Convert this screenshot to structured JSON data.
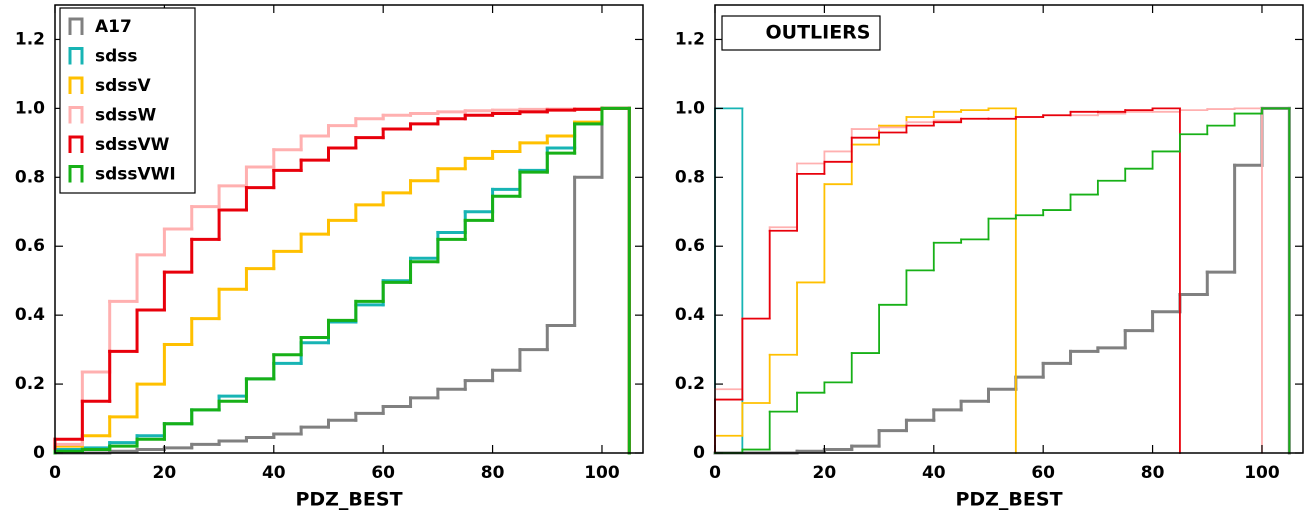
{
  "chart_data": [
    {
      "type": "histogram",
      "xlabel": "PDZ_BEST",
      "xlim": [
        0,
        107.5
      ],
      "ylim": [
        0,
        1.3
      ],
      "xticks": [
        0,
        20,
        40,
        60,
        80,
        100
      ],
      "yticks": [
        0,
        0.2,
        0.4,
        0.6,
        0.8,
        {
          "value": 1,
          "label": "1.0"
        },
        1.2
      ],
      "legend": "upper left",
      "series": [
        {
          "name": "A17",
          "color": "#808080",
          "linewidth": 3,
          "bins": [
            0,
            5,
            10,
            15,
            20,
            25,
            30,
            35,
            40,
            45,
            50,
            55,
            60,
            65,
            70,
            75,
            80,
            85,
            90,
            95,
            100,
            105
          ],
          "values": [
            0,
            0,
            0.005,
            0.01,
            0.015,
            0.025,
            0.035,
            0.045,
            0.055,
            0.075,
            0.095,
            0.115,
            0.135,
            0.16,
            0.185,
            0.21,
            0.24,
            0.3,
            0.37,
            0.8,
            1.0
          ]
        },
        {
          "name": "sdss",
          "color": "#17b4b4",
          "linewidth": 3,
          "bins": [
            0,
            5,
            10,
            15,
            20,
            25,
            30,
            35,
            40,
            45,
            50,
            55,
            60,
            65,
            70,
            75,
            80,
            85,
            90,
            95,
            100,
            105
          ],
          "values": [
            0.01,
            0.015,
            0.03,
            0.05,
            0.085,
            0.125,
            0.165,
            0.215,
            0.26,
            0.32,
            0.38,
            0.43,
            0.5,
            0.565,
            0.64,
            0.7,
            0.765,
            0.82,
            0.885,
            0.955,
            1.0
          ]
        },
        {
          "name": "sdssV",
          "color": "#ffc000",
          "linewidth": 3,
          "bins": [
            0,
            5,
            10,
            15,
            20,
            25,
            30,
            35,
            40,
            45,
            50,
            55,
            60,
            65,
            70,
            75,
            80,
            85,
            90,
            95,
            100,
            105
          ],
          "values": [
            0.02,
            0.05,
            0.105,
            0.2,
            0.315,
            0.39,
            0.475,
            0.535,
            0.585,
            0.635,
            0.675,
            0.72,
            0.755,
            0.79,
            0.825,
            0.855,
            0.875,
            0.9,
            0.92,
            0.96,
            1.0
          ]
        },
        {
          "name": "sdssW",
          "color": "#ffb0b0",
          "linewidth": 3,
          "bins": [
            0,
            5,
            10,
            15,
            20,
            25,
            30,
            35,
            40,
            45,
            50,
            55,
            60,
            65,
            70,
            75,
            80,
            85,
            90,
            95,
            100,
            105
          ],
          "values": [
            0.025,
            0.235,
            0.44,
            0.575,
            0.65,
            0.715,
            0.775,
            0.83,
            0.88,
            0.92,
            0.95,
            0.97,
            0.98,
            0.985,
            0.99,
            0.993,
            0.995,
            0.997,
            0.998,
            0.999,
            1.0
          ]
        },
        {
          "name": "sdssVW",
          "color": "#e8000b",
          "linewidth": 3,
          "bins": [
            0,
            5,
            10,
            15,
            20,
            25,
            30,
            35,
            40,
            45,
            50,
            55,
            60,
            65,
            70,
            75,
            80,
            85,
            90,
            95,
            100,
            105
          ],
          "values": [
            0.04,
            0.15,
            0.295,
            0.415,
            0.525,
            0.62,
            0.705,
            0.77,
            0.82,
            0.85,
            0.885,
            0.915,
            0.94,
            0.955,
            0.97,
            0.98,
            0.985,
            0.99,
            0.995,
            0.997,
            1.0
          ]
        },
        {
          "name": "sdssVWI",
          "color": "#17b017",
          "linewidth": 3,
          "bins": [
            0,
            5,
            10,
            15,
            20,
            25,
            30,
            35,
            40,
            45,
            50,
            55,
            60,
            65,
            70,
            75,
            80,
            85,
            90,
            95,
            100,
            105
          ],
          "values": [
            0.005,
            0.01,
            0.02,
            0.04,
            0.085,
            0.125,
            0.15,
            0.215,
            0.285,
            0.335,
            0.385,
            0.44,
            0.495,
            0.555,
            0.62,
            0.675,
            0.745,
            0.815,
            0.87,
            0.955,
            1.0
          ]
        }
      ]
    },
    {
      "type": "histogram",
      "xlabel": "PDZ_BEST",
      "annotation": "OUTLIERS",
      "xlim": [
        0,
        107.5
      ],
      "ylim": [
        0,
        1.3
      ],
      "xticks": [
        0,
        20,
        40,
        60,
        80,
        100
      ],
      "yticks": [
        0,
        0.2,
        0.4,
        0.6,
        0.8,
        {
          "value": 1,
          "label": "1.0"
        },
        1.2
      ],
      "series": [
        {
          "color": "#808080",
          "linewidth": 3,
          "bins": [
            0,
            5,
            10,
            15,
            20,
            25,
            30,
            35,
            40,
            45,
            50,
            55,
            60,
            65,
            70,
            75,
            80,
            85,
            90,
            95,
            100,
            105
          ],
          "values": [
            0,
            0,
            0,
            0.005,
            0.01,
            0.02,
            0.065,
            0.095,
            0.125,
            0.15,
            0.185,
            0.22,
            0.26,
            0.295,
            0.305,
            0.355,
            0.41,
            0.46,
            0.525,
            0.835,
            1.0
          ]
        },
        {
          "color": "#17b4b4",
          "linewidth": 1.8,
          "bins": [
            0,
            5
          ],
          "values": [
            1.0
          ]
        },
        {
          "color": "#ffc000",
          "linewidth": 1.8,
          "bins": [
            0,
            5,
            10,
            15,
            20,
            25,
            30,
            35,
            40,
            45,
            50,
            55
          ],
          "values": [
            0.05,
            0.145,
            0.285,
            0.495,
            0.78,
            0.895,
            0.95,
            0.975,
            0.99,
            0.995,
            1.0
          ]
        },
        {
          "color": "#ffb0b0",
          "linewidth": 1.8,
          "bins": [
            0,
            5,
            10,
            15,
            20,
            25,
            30,
            35,
            40,
            45,
            50,
            55,
            60,
            65,
            70,
            75,
            80,
            85,
            90,
            95,
            100
          ],
          "values": [
            0.185,
            0.39,
            0.655,
            0.84,
            0.875,
            0.94,
            0.945,
            0.96,
            0.965,
            0.97,
            0.97,
            0.975,
            0.98,
            0.98,
            0.985,
            0.99,
            0.99,
            0.995,
            0.998,
            1.0
          ]
        },
        {
          "color": "#e8000b",
          "linewidth": 1.8,
          "bins": [
            0,
            5,
            10,
            15,
            20,
            25,
            30,
            35,
            40,
            45,
            50,
            55,
            60,
            65,
            70,
            75,
            80,
            85
          ],
          "values": [
            0.155,
            0.39,
            0.645,
            0.81,
            0.845,
            0.915,
            0.93,
            0.95,
            0.96,
            0.97,
            0.97,
            0.975,
            0.98,
            0.99,
            0.99,
            0.995,
            1.0
          ]
        },
        {
          "color": "#17b017",
          "linewidth": 1.8,
          "bins": [
            0,
            5,
            10,
            15,
            20,
            25,
            30,
            35,
            40,
            45,
            50,
            55,
            60,
            65,
            70,
            75,
            80,
            85,
            90,
            95,
            100,
            105
          ],
          "values": [
            0,
            0.01,
            0.12,
            0.175,
            0.205,
            0.29,
            0.43,
            0.53,
            0.61,
            0.62,
            0.68,
            0.69,
            0.705,
            0.75,
            0.79,
            0.825,
            0.875,
            0.925,
            0.95,
            0.985,
            1.0
          ]
        }
      ]
    }
  ]
}
